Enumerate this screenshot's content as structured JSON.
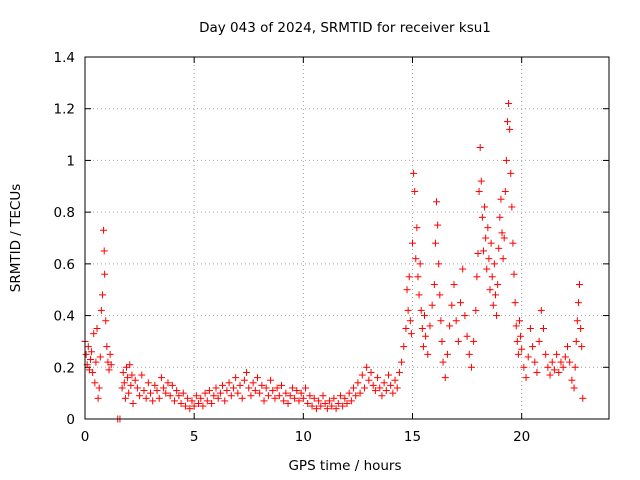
{
  "chart_data": {
    "type": "scatter",
    "title": "Day 043 of 2024, SRMTID for receiver ksu1",
    "xlabel": "GPS time / hours",
    "ylabel": "SRMTID / TECUs",
    "xlim": [
      0,
      24
    ],
    "ylim": [
      0,
      1.4
    ],
    "xticks": [
      0,
      5,
      10,
      15,
      20
    ],
    "xtick_labels": [
      "0",
      "5",
      "10",
      "15",
      "20"
    ],
    "yticks": [
      0,
      0.2,
      0.4,
      0.6,
      0.8,
      1.0,
      1.2,
      1.4
    ],
    "ytick_labels": [
      "0",
      "0.2",
      "0.4",
      "0.6",
      "0.8",
      "1",
      "1.2",
      "1.4"
    ],
    "grid": true,
    "marker": "plus",
    "color": "#ff0000",
    "series": [
      {
        "name": "SRMTID",
        "points": [
          [
            0.0,
            0.3
          ],
          [
            0.05,
            0.25
          ],
          [
            0.1,
            0.21
          ],
          [
            0.15,
            0.28
          ],
          [
            0.2,
            0.19
          ],
          [
            0.25,
            0.23
          ],
          [
            0.3,
            0.26
          ],
          [
            0.35,
            0.18
          ],
          [
            0.4,
            0.33
          ],
          [
            0.45,
            0.14
          ],
          [
            0.5,
            0.22
          ],
          [
            0.55,
            0.35
          ],
          [
            0.6,
            0.08
          ],
          [
            0.65,
            0.12
          ],
          [
            0.7,
            0.24
          ],
          [
            0.75,
            0.42
          ],
          [
            0.8,
            0.48
          ],
          [
            0.85,
            0.73
          ],
          [
            0.88,
            0.65
          ],
          [
            0.9,
            0.56
          ],
          [
            0.95,
            0.38
          ],
          [
            1.0,
            0.28
          ],
          [
            1.05,
            0.22
          ],
          [
            1.1,
            0.19
          ],
          [
            1.15,
            0.25
          ],
          [
            1.2,
            0.21
          ],
          [
            1.5,
            0.0
          ],
          [
            1.6,
            0.0
          ],
          [
            1.7,
            0.12
          ],
          [
            1.75,
            0.18
          ],
          [
            1.8,
            0.14
          ],
          [
            1.85,
            0.08
          ],
          [
            1.9,
            0.2
          ],
          [
            1.95,
            0.16
          ],
          [
            2.0,
            0.1
          ],
          [
            2.05,
            0.21
          ],
          [
            2.1,
            0.13
          ],
          [
            2.15,
            0.17
          ],
          [
            2.2,
            0.06
          ],
          [
            2.3,
            0.15
          ],
          [
            2.4,
            0.12
          ],
          [
            2.5,
            0.09
          ],
          [
            2.6,
            0.17
          ],
          [
            2.7,
            0.11
          ],
          [
            2.8,
            0.08
          ],
          [
            2.9,
            0.14
          ],
          [
            3.0,
            0.1
          ],
          [
            3.1,
            0.07
          ],
          [
            3.2,
            0.13
          ],
          [
            3.3,
            0.11
          ],
          [
            3.4,
            0.08
          ],
          [
            3.5,
            0.16
          ],
          [
            3.6,
            0.12
          ],
          [
            3.7,
            0.1
          ],
          [
            3.8,
            0.14
          ],
          [
            3.9,
            0.09
          ],
          [
            4.0,
            0.13
          ],
          [
            4.1,
            0.07
          ],
          [
            4.2,
            0.11
          ],
          [
            4.3,
            0.09
          ],
          [
            4.4,
            0.06
          ],
          [
            4.5,
            0.1
          ],
          [
            4.6,
            0.05
          ],
          [
            4.7,
            0.08
          ],
          [
            4.8,
            0.04
          ],
          [
            4.9,
            0.07
          ],
          [
            5.0,
            0.05
          ],
          [
            5.1,
            0.09
          ],
          [
            5.2,
            0.06
          ],
          [
            5.3,
            0.08
          ],
          [
            5.4,
            0.05
          ],
          [
            5.5,
            0.1
          ],
          [
            5.6,
            0.07
          ],
          [
            5.7,
            0.11
          ],
          [
            5.8,
            0.06
          ],
          [
            5.9,
            0.09
          ],
          [
            6.0,
            0.12
          ],
          [
            6.1,
            0.08
          ],
          [
            6.2,
            0.1
          ],
          [
            6.3,
            0.13
          ],
          [
            6.4,
            0.07
          ],
          [
            6.5,
            0.11
          ],
          [
            6.6,
            0.14
          ],
          [
            6.7,
            0.09
          ],
          [
            6.8,
            0.12
          ],
          [
            6.9,
            0.16
          ],
          [
            7.0,
            0.1
          ],
          [
            7.1,
            0.13
          ],
          [
            7.2,
            0.08
          ],
          [
            7.3,
            0.15
          ],
          [
            7.4,
            0.18
          ],
          [
            7.5,
            0.12
          ],
          [
            7.6,
            0.09
          ],
          [
            7.7,
            0.14
          ],
          [
            7.8,
            0.11
          ],
          [
            7.9,
            0.16
          ],
          [
            8.0,
            0.1
          ],
          [
            8.1,
            0.13
          ],
          [
            8.2,
            0.07
          ],
          [
            8.3,
            0.12
          ],
          [
            8.4,
            0.09
          ],
          [
            8.5,
            0.15
          ],
          [
            8.6,
            0.11
          ],
          [
            8.7,
            0.08
          ],
          [
            8.8,
            0.12
          ],
          [
            8.9,
            0.09
          ],
          [
            9.0,
            0.13
          ],
          [
            9.1,
            0.07
          ],
          [
            9.2,
            0.1
          ],
          [
            9.3,
            0.06
          ],
          [
            9.4,
            0.09
          ],
          [
            9.5,
            0.12
          ],
          [
            9.6,
            0.08
          ],
          [
            9.7,
            0.11
          ],
          [
            9.8,
            0.07
          ],
          [
            9.9,
            0.1
          ],
          [
            10.0,
            0.08
          ],
          [
            10.1,
            0.12
          ],
          [
            10.2,
            0.06
          ],
          [
            10.3,
            0.09
          ],
          [
            10.4,
            0.05
          ],
          [
            10.5,
            0.08
          ],
          [
            10.6,
            0.04
          ],
          [
            10.7,
            0.07
          ],
          [
            10.8,
            0.05
          ],
          [
            10.9,
            0.09
          ],
          [
            11.0,
            0.06
          ],
          [
            11.1,
            0.04
          ],
          [
            11.2,
            0.07
          ],
          [
            11.3,
            0.05
          ],
          [
            11.4,
            0.08
          ],
          [
            11.5,
            0.04
          ],
          [
            11.6,
            0.06
          ],
          [
            11.7,
            0.09
          ],
          [
            11.8,
            0.05
          ],
          [
            11.9,
            0.08
          ],
          [
            12.0,
            0.06
          ],
          [
            12.1,
            0.1
          ],
          [
            12.2,
            0.07
          ],
          [
            12.3,
            0.12
          ],
          [
            12.4,
            0.09
          ],
          [
            12.5,
            0.14
          ],
          [
            12.6,
            0.1
          ],
          [
            12.7,
            0.17
          ],
          [
            12.8,
            0.12
          ],
          [
            12.9,
            0.2
          ],
          [
            13.0,
            0.15
          ],
          [
            13.1,
            0.18
          ],
          [
            13.2,
            0.13
          ],
          [
            13.3,
            0.11
          ],
          [
            13.4,
            0.16
          ],
          [
            13.5,
            0.12
          ],
          [
            13.6,
            0.09
          ],
          [
            13.7,
            0.14
          ],
          [
            13.8,
            0.11
          ],
          [
            13.9,
            0.17
          ],
          [
            14.0,
            0.13
          ],
          [
            14.1,
            0.1
          ],
          [
            14.2,
            0.15
          ],
          [
            14.3,
            0.12
          ],
          [
            14.4,
            0.18
          ],
          [
            14.5,
            0.22
          ],
          [
            14.6,
            0.28
          ],
          [
            14.7,
            0.35
          ],
          [
            14.75,
            0.5
          ],
          [
            14.8,
            0.42
          ],
          [
            14.85,
            0.55
          ],
          [
            14.9,
            0.38
          ],
          [
            14.95,
            0.33
          ],
          [
            15.0,
            0.68
          ],
          [
            15.05,
            0.95
          ],
          [
            15.1,
            0.88
          ],
          [
            15.15,
            0.62
          ],
          [
            15.2,
            0.74
          ],
          [
            15.25,
            0.55
          ],
          [
            15.3,
            0.48
          ],
          [
            15.35,
            0.6
          ],
          [
            15.4,
            0.42
          ],
          [
            15.45,
            0.35
          ],
          [
            15.5,
            0.28
          ],
          [
            15.55,
            0.4
          ],
          [
            15.6,
            0.32
          ],
          [
            15.7,
            0.25
          ],
          [
            15.8,
            0.36
          ],
          [
            15.9,
            0.44
          ],
          [
            16.0,
            0.52
          ],
          [
            16.05,
            0.68
          ],
          [
            16.1,
            0.84
          ],
          [
            16.15,
            0.75
          ],
          [
            16.2,
            0.6
          ],
          [
            16.25,
            0.48
          ],
          [
            16.3,
            0.38
          ],
          [
            16.35,
            0.3
          ],
          [
            16.4,
            0.22
          ],
          [
            16.5,
            0.16
          ],
          [
            16.6,
            0.25
          ],
          [
            16.7,
            0.36
          ],
          [
            16.8,
            0.44
          ],
          [
            16.9,
            0.52
          ],
          [
            17.0,
            0.38
          ],
          [
            17.1,
            0.3
          ],
          [
            17.2,
            0.45
          ],
          [
            17.3,
            0.58
          ],
          [
            17.4,
            0.4
          ],
          [
            17.5,
            0.32
          ],
          [
            17.6,
            0.25
          ],
          [
            17.7,
            0.2
          ],
          [
            17.8,
            0.3
          ],
          [
            17.9,
            0.42
          ],
          [
            17.95,
            0.55
          ],
          [
            18.0,
            0.64
          ],
          [
            18.05,
            0.88
          ],
          [
            18.1,
            1.05
          ],
          [
            18.15,
            0.92
          ],
          [
            18.2,
            0.78
          ],
          [
            18.25,
            0.65
          ],
          [
            18.3,
            0.82
          ],
          [
            18.35,
            0.7
          ],
          [
            18.4,
            0.58
          ],
          [
            18.45,
            0.74
          ],
          [
            18.5,
            0.62
          ],
          [
            18.55,
            0.5
          ],
          [
            18.6,
            0.68
          ],
          [
            18.65,
            0.55
          ],
          [
            18.7,
            0.44
          ],
          [
            18.75,
            0.6
          ],
          [
            18.8,
            0.48
          ],
          [
            18.85,
            0.4
          ],
          [
            18.9,
            0.52
          ],
          [
            18.95,
            0.66
          ],
          [
            19.0,
            0.78
          ],
          [
            19.05,
            0.85
          ],
          [
            19.1,
            0.72
          ],
          [
            19.15,
            0.62
          ],
          [
            19.2,
            0.7
          ],
          [
            19.25,
            0.88
          ],
          [
            19.3,
            1.0
          ],
          [
            19.35,
            1.15
          ],
          [
            19.4,
            1.22
          ],
          [
            19.45,
            1.12
          ],
          [
            19.5,
            0.95
          ],
          [
            19.55,
            0.82
          ],
          [
            19.6,
            0.68
          ],
          [
            19.65,
            0.56
          ],
          [
            19.7,
            0.45
          ],
          [
            19.75,
            0.36
          ],
          [
            19.8,
            0.3
          ],
          [
            19.85,
            0.25
          ],
          [
            19.9,
            0.38
          ],
          [
            19.95,
            0.32
          ],
          [
            20.0,
            0.27
          ],
          [
            20.1,
            0.2
          ],
          [
            20.2,
            0.16
          ],
          [
            20.3,
            0.24
          ],
          [
            20.4,
            0.35
          ],
          [
            20.5,
            0.28
          ],
          [
            20.6,
            0.22
          ],
          [
            20.7,
            0.18
          ],
          [
            20.8,
            0.3
          ],
          [
            20.9,
            0.42
          ],
          [
            21.0,
            0.35
          ],
          [
            21.1,
            0.25
          ],
          [
            21.2,
            0.2
          ],
          [
            21.3,
            0.17
          ],
          [
            21.4,
            0.22
          ],
          [
            21.5,
            0.19
          ],
          [
            21.6,
            0.25
          ],
          [
            21.7,
            0.18
          ],
          [
            21.8,
            0.22
          ],
          [
            21.9,
            0.2
          ],
          [
            22.0,
            0.24
          ],
          [
            22.1,
            0.28
          ],
          [
            22.2,
            0.22
          ],
          [
            22.3,
            0.15
          ],
          [
            22.4,
            0.12
          ],
          [
            22.45,
            0.2
          ],
          [
            22.5,
            0.3
          ],
          [
            22.55,
            0.38
          ],
          [
            22.6,
            0.45
          ],
          [
            22.65,
            0.52
          ],
          [
            22.7,
            0.35
          ],
          [
            22.75,
            0.28
          ],
          [
            22.8,
            0.08
          ]
        ]
      }
    ]
  }
}
